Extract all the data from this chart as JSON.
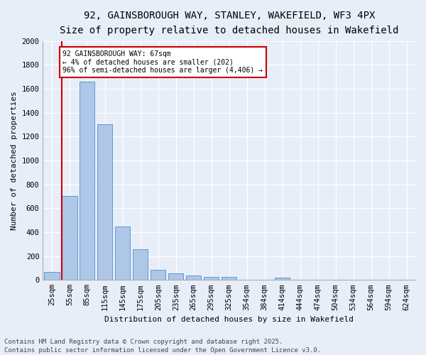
{
  "title_line1": "92, GAINSBOROUGH WAY, STANLEY, WAKEFIELD, WF3 4PX",
  "title_line2": "Size of property relative to detached houses in Wakefield",
  "xlabel": "Distribution of detached houses by size in Wakefield",
  "ylabel": "Number of detached properties",
  "categories": [
    "25sqm",
    "55sqm",
    "85sqm",
    "115sqm",
    "145sqm",
    "175sqm",
    "205sqm",
    "235sqm",
    "265sqm",
    "295sqm",
    "325sqm",
    "354sqm",
    "384sqm",
    "414sqm",
    "444sqm",
    "474sqm",
    "504sqm",
    "534sqm",
    "564sqm",
    "594sqm",
    "624sqm"
  ],
  "values": [
    65,
    700,
    1660,
    1305,
    445,
    255,
    85,
    55,
    40,
    28,
    25,
    0,
    0,
    18,
    0,
    0,
    0,
    0,
    0,
    0,
    0
  ],
  "bar_color": "#aec6e8",
  "bar_edge_color": "#5b9bd5",
  "vline_color": "#cc0000",
  "annotation_text": "92 GAINSBOROUGH WAY: 67sqm\n← 4% of detached houses are smaller (202)\n96% of semi-detached houses are larger (4,406) →",
  "annotation_box_color": "#cc0000",
  "annotation_facecolor": "white",
  "ylim": [
    0,
    2000
  ],
  "yticks": [
    0,
    200,
    400,
    600,
    800,
    1000,
    1200,
    1400,
    1600,
    1800,
    2000
  ],
  "footer_line1": "Contains HM Land Registry data © Crown copyright and database right 2025.",
  "footer_line2": "Contains public sector information licensed under the Open Government Licence v3.0.",
  "bg_color": "#e8eef8",
  "title_fontsize": 10,
  "axis_label_fontsize": 8,
  "tick_fontsize": 7.5,
  "footer_fontsize": 6.5
}
